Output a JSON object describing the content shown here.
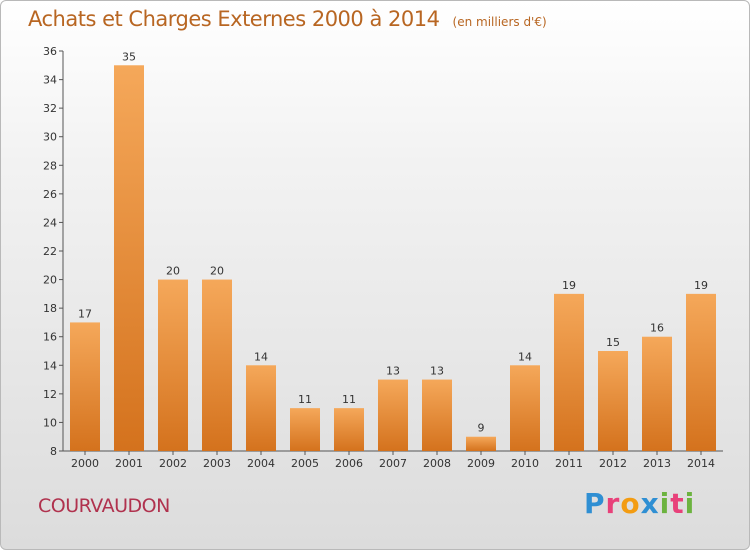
{
  "chart_data": {
    "type": "bar",
    "title": "Achats et Charges Externes 2000 à 2014",
    "subtitle": "(en milliers d'€)",
    "categories": [
      "2000",
      "2001",
      "2002",
      "2003",
      "2004",
      "2005",
      "2006",
      "2007",
      "2008",
      "2009",
      "2010",
      "2011",
      "2012",
      "2013",
      "2014"
    ],
    "values": [
      17,
      35,
      20,
      20,
      14,
      11,
      11,
      13,
      13,
      9,
      14,
      19,
      15,
      16,
      19
    ],
    "ylim": [
      8,
      36
    ],
    "yticks": [
      8,
      10,
      12,
      14,
      16,
      18,
      20,
      22,
      24,
      26,
      28,
      30,
      32,
      34,
      36
    ],
    "grid": false,
    "bar_color": "#f0953e"
  },
  "place": "COURVAUDON",
  "logo": {
    "text": "Proxiti",
    "colors": [
      "#2f8fd3",
      "#e8417a",
      "#f39c12",
      "#2f8fd3",
      "#6cb33f",
      "#e8417a",
      "#6cb33f"
    ]
  }
}
